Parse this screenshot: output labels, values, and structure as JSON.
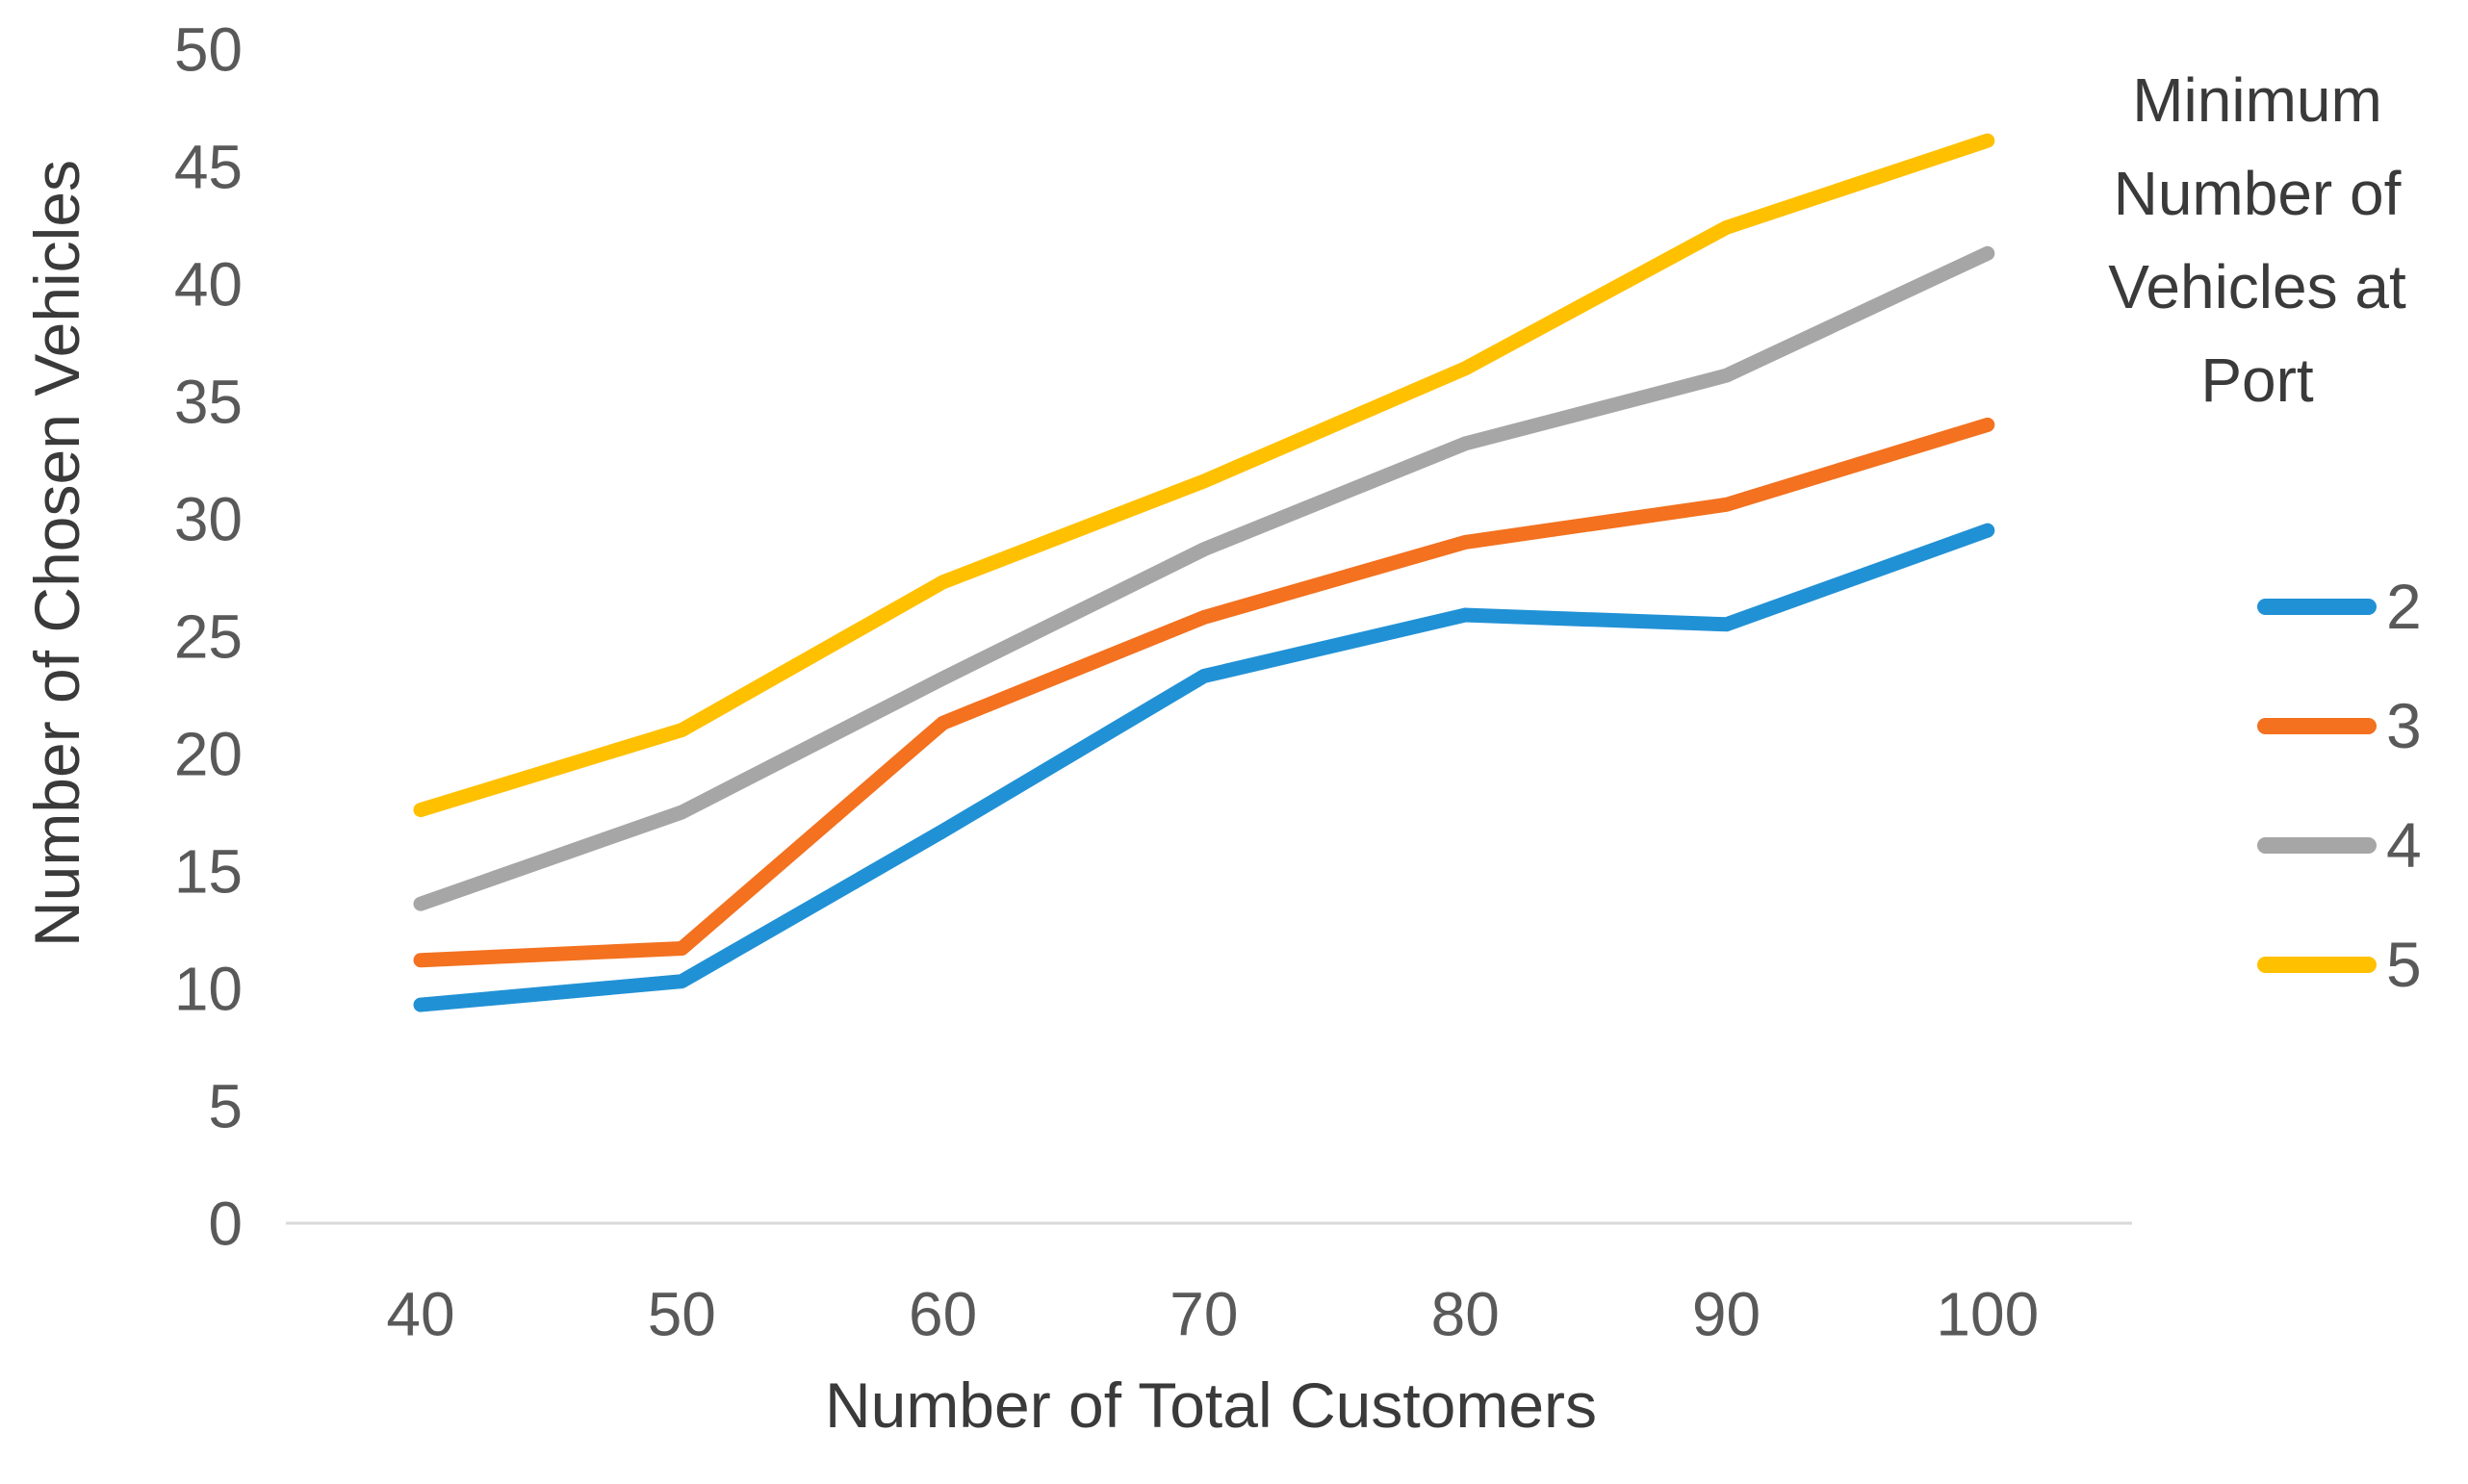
{
  "chart_data": {
    "type": "line",
    "title": "",
    "xlabel": "Number of Total Customers",
    "ylabel": "Number of Chosen Vehicles",
    "x": [
      40,
      50,
      60,
      70,
      80,
      90,
      100
    ],
    "series": [
      {
        "name": "2",
        "color": "#2191D5",
        "values": [
          9.3,
          10.3,
          16.7,
          23.3,
          25.9,
          25.5,
          29.5
        ]
      },
      {
        "name": "3",
        "color": "#F3711F",
        "values": [
          11.2,
          11.7,
          21.3,
          25.8,
          29.0,
          30.6,
          34.0
        ]
      },
      {
        "name": "4",
        "color": "#A6A6A6",
        "values": [
          13.6,
          17.5,
          23.2,
          28.7,
          33.2,
          36.1,
          41.3
        ]
      },
      {
        "name": "5",
        "color": "#FFC000",
        "values": [
          17.6,
          21.0,
          27.3,
          31.6,
          36.4,
          42.4,
          46.1
        ]
      }
    ],
    "ylim": [
      0,
      50
    ],
    "ytick_step": 5,
    "yticks": [
      0,
      5,
      10,
      15,
      20,
      25,
      30,
      35,
      40,
      45,
      50
    ],
    "legend_title": "Minimum Number of Vehicles at Port",
    "legend_position": "right",
    "grid": false,
    "axis_line_color": "#D9D9D9",
    "tick_label_color": "#595959",
    "axis_title_color": "#3A3A3A"
  }
}
